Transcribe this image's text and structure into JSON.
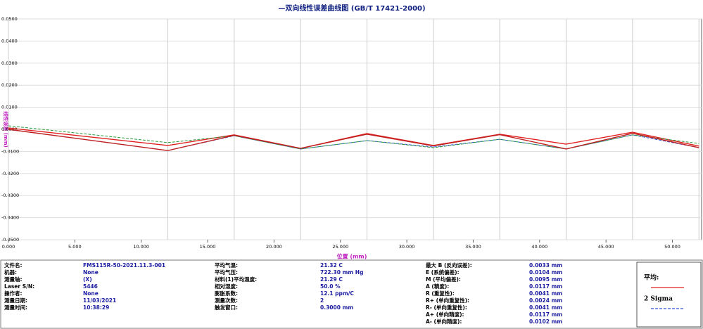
{
  "chart_data": {
    "type": "line",
    "title": "—双向线性误差曲线图  (GB/T 17421-2000)",
    "x_label": "位置 (mm)",
    "y_label": "线性误差 (mm)",
    "x": [
      0,
      12,
      17,
      22,
      27,
      32,
      37,
      42,
      47,
      52
    ],
    "series": [
      {
        "name": "平均:",
        "color": "#e02020",
        "dashed": false,
        "values": [
          0.0006,
          -0.0073,
          -0.0025,
          -0.0086,
          -0.0019,
          -0.0073,
          -0.0022,
          -0.0067,
          -0.0013,
          -0.0076
        ]
      },
      {
        "name": "2 Sigma",
        "color": "#3050d0",
        "dashed": true,
        "values": [
          0.0,
          -0.0096,
          -0.0029,
          -0.0089,
          -0.0051,
          -0.008,
          -0.0045,
          -0.0089,
          -0.0025,
          -0.0083
        ]
      },
      {
        "color": "#2a9a3a",
        "dashed": true,
        "values": [
          0.0016,
          -0.006,
          -0.0029,
          -0.0089,
          -0.0051,
          -0.0083,
          -0.0045,
          -0.0089,
          -0.0025,
          -0.0064
        ]
      },
      {
        "color": "#c02020",
        "dashed": false,
        "values": [
          0.0,
          -0.0096,
          -0.0027,
          -0.0086,
          -0.0022,
          -0.0075,
          -0.0024,
          -0.0089,
          -0.0018,
          -0.0083
        ]
      }
    ],
    "xlim": [
      0,
      52.2
    ],
    "ylim": [
      -0.05,
      0.05
    ],
    "xticks": [
      {
        "value": 0,
        "label": "0.000"
      },
      {
        "value": 5,
        "label": "5.000"
      },
      {
        "value": 10,
        "label": "10.000"
      },
      {
        "value": 15,
        "label": "15.000"
      },
      {
        "value": 20,
        "label": "20.000"
      },
      {
        "value": 25,
        "label": "25.000"
      },
      {
        "value": 30,
        "label": "30.000"
      },
      {
        "value": 35,
        "label": "35.000"
      },
      {
        "value": 40,
        "label": "40.000"
      },
      {
        "value": 45,
        "label": "45.000"
      },
      {
        "value": 50,
        "label": "50.000"
      }
    ],
    "yticks": [
      {
        "value": 0.05,
        "label": "0.0500"
      },
      {
        "value": 0.04,
        "label": "0.0400"
      },
      {
        "value": 0.03,
        "label": "0.0300"
      },
      {
        "value": 0.02,
        "label": "0.0200"
      },
      {
        "value": 0.01,
        "label": "0.0100"
      },
      {
        "value": 0,
        "label": "0.0000"
      },
      {
        "value": -0.01,
        "label": "-0.0100"
      },
      {
        "value": -0.02,
        "label": "-0.0200"
      },
      {
        "value": -0.03,
        "label": "-0.0300"
      },
      {
        "value": -0.04,
        "label": "-0.0400"
      },
      {
        "value": -0.05,
        "label": "-0.0500"
      }
    ],
    "grid": true
  },
  "info": {
    "columns": [
      {
        "labels": [
          "文件名:",
          "机器:",
          "测量轴:",
          "Laser S/N:",
          "操作者:",
          "测量日期:",
          "测量时间:"
        ],
        "values": [
          "FMS115R-50-2021.11.3-001",
          "None",
          "(X)",
          "5446",
          "None",
          "11/03/2021",
          "10:38:29"
        ]
      },
      {
        "labels": [
          "平均气温:",
          "平均气压:",
          "材料(1)平均温度:",
          "相对湿度:",
          "膨胀系数:",
          "测量次数:",
          "触发窗口:"
        ],
        "values": [
          "21.32 C",
          "722.30 mm Hg",
          "21.29 C",
          "50.0 %",
          "12.1 ppm/C",
          "2",
          "0.3000 mm"
        ]
      },
      {
        "labels": [
          "最大 B (反向误差):",
          "E (系统偏差):",
          "M (平均偏差):",
          "A (精度):",
          "R (重复性):",
          "R+ (单向重复性):",
          "R- (单向重复性):",
          "A+ (单向精度):",
          "A- (单向精度):"
        ],
        "values": [
          "0.0033 mm",
          "0.0104 mm",
          "0.0095 mm",
          "0.0117 mm",
          "0.0041 mm",
          "0.0024 mm",
          "0.0041 mm",
          "0.0117 mm",
          "0.0102 mm"
        ]
      }
    ]
  }
}
